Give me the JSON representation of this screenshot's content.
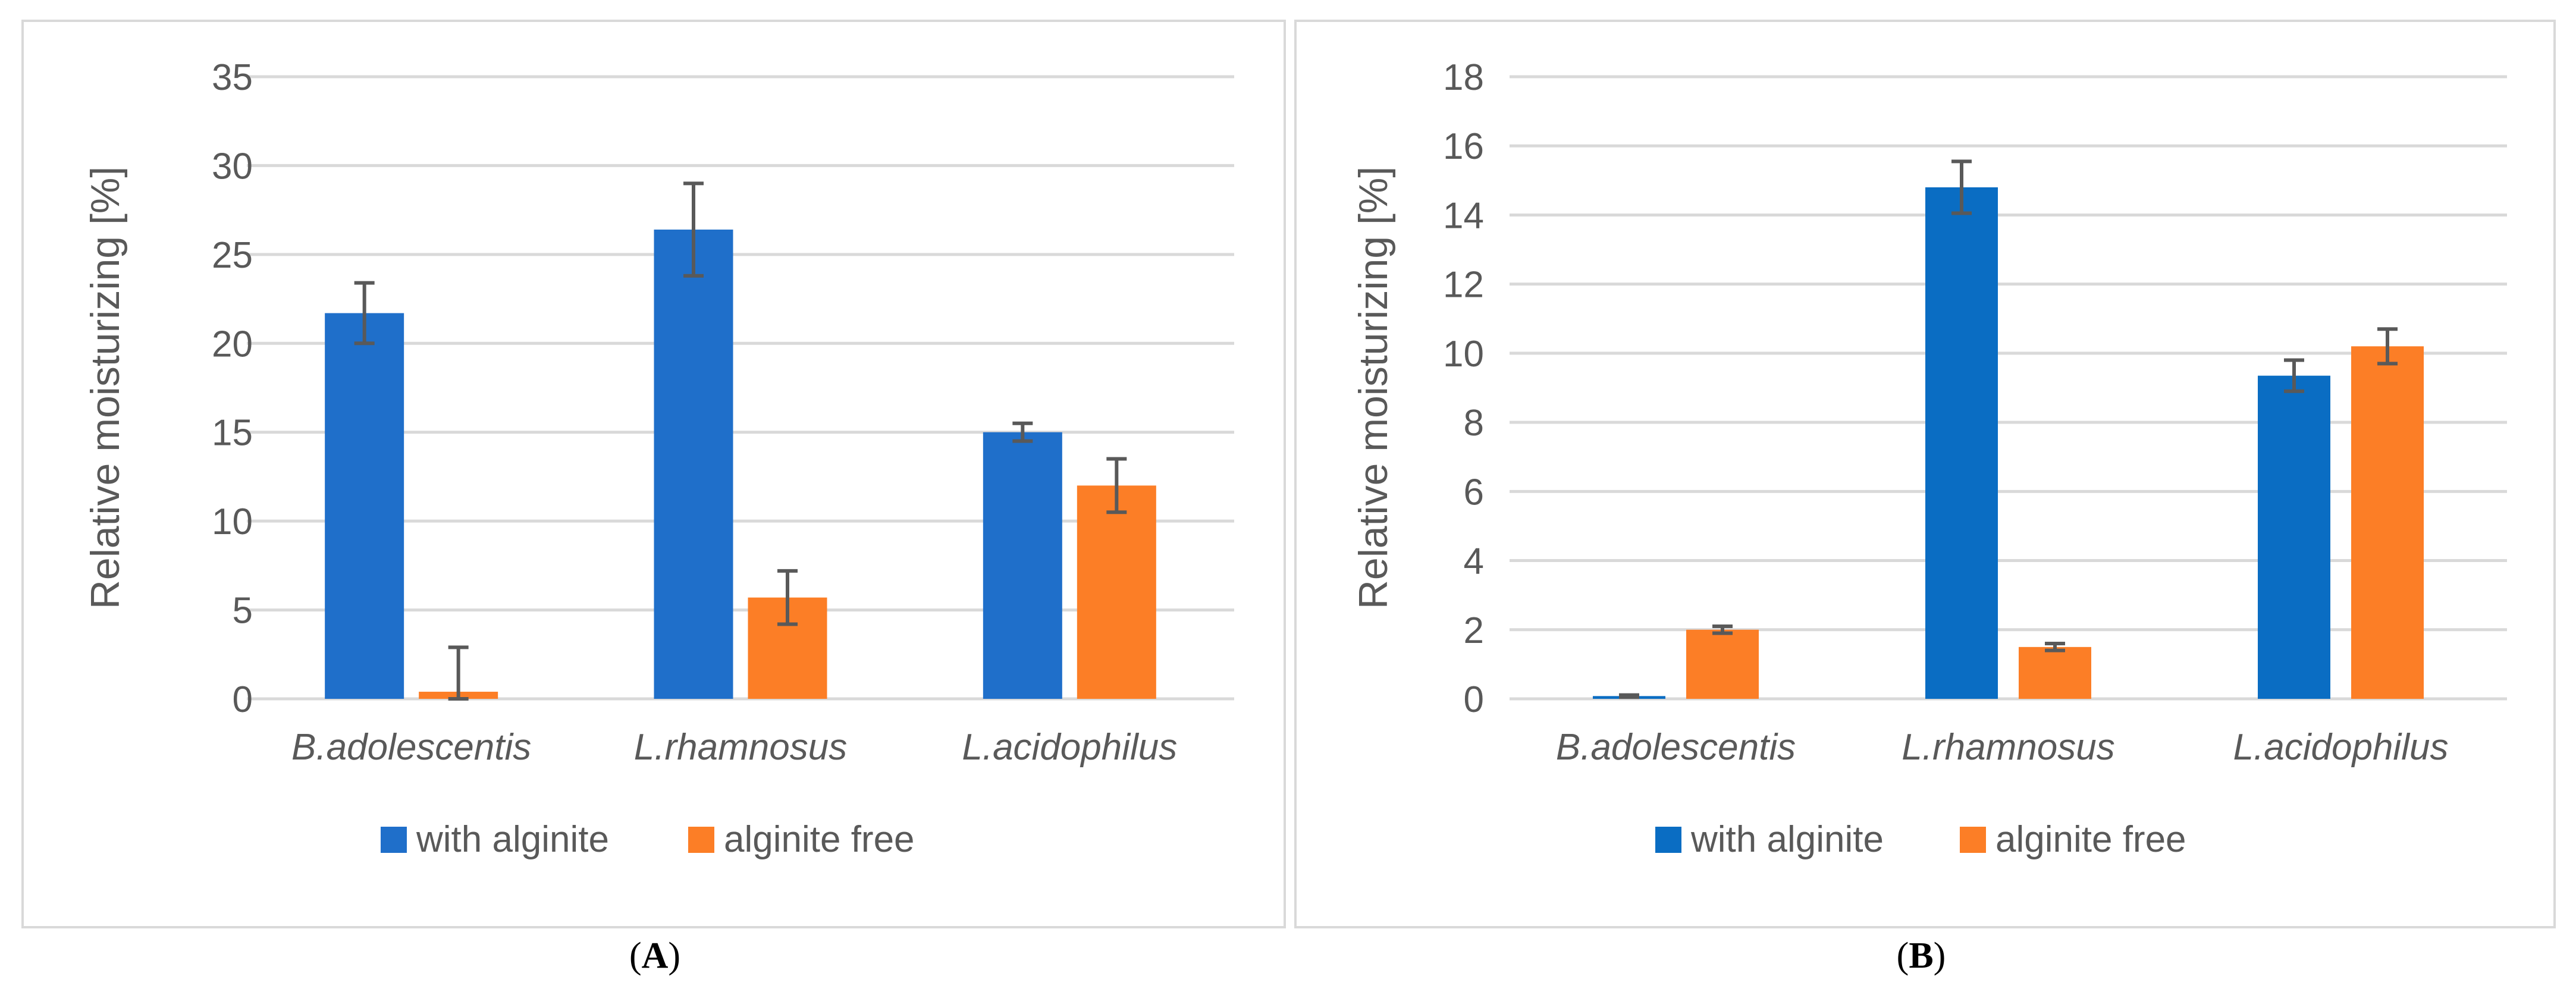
{
  "chart_data": [
    {
      "type": "bar",
      "panel_label": "A",
      "title": "",
      "xlabel": "",
      "ylabel": "Relative moisturizing [%]",
      "categories": [
        "B.adolescentis",
        "L.rhamnosus",
        "L.acidophilus"
      ],
      "ylim": [
        0,
        35
      ],
      "yticks": [
        0,
        5,
        10,
        15,
        20,
        25,
        30,
        35
      ],
      "grid": true,
      "legend": "bottom-center",
      "series": [
        {
          "name": "with alginite",
          "color": "#1f6fca",
          "values": [
            21.7,
            26.4,
            15.0
          ],
          "errors": [
            1.7,
            2.6,
            0.5
          ]
        },
        {
          "name": "alginite free",
          "color": "#fc7e26",
          "values": [
            0.4,
            5.7,
            12.0
          ],
          "errors": [
            2.5,
            1.5,
            1.5
          ]
        }
      ]
    },
    {
      "type": "bar",
      "panel_label": "B",
      "title": "",
      "xlabel": "",
      "ylabel": "Relative moisturizing [%]",
      "categories": [
        "B.adolescentis",
        "L.rhamnosus",
        "L.acidophilus"
      ],
      "ylim": [
        0,
        18
      ],
      "yticks": [
        0,
        2,
        4,
        6,
        8,
        10,
        12,
        14,
        16,
        18
      ],
      "grid": true,
      "legend": "bottom-center",
      "series": [
        {
          "name": "with alginite",
          "color": "#0a6dc3",
          "values": [
            0.08,
            14.8,
            9.35
          ],
          "errors": [
            0.03,
            0.75,
            0.45
          ]
        },
        {
          "name": "alginite free",
          "color": "#fc7e26",
          "values": [
            2.0,
            1.5,
            10.2
          ],
          "errors": [
            0.1,
            0.1,
            0.5
          ]
        }
      ]
    }
  ]
}
